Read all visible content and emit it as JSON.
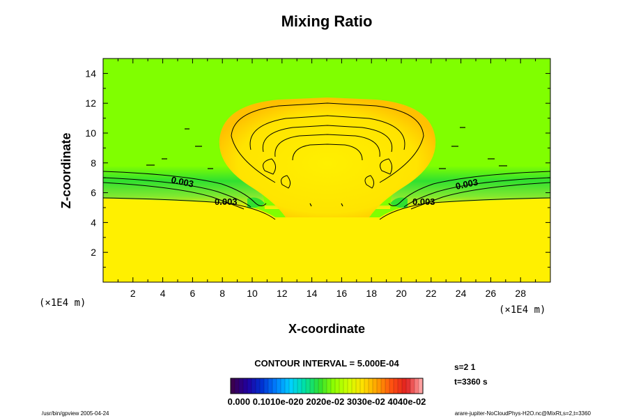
{
  "chart_data": {
    "type": "heatmap",
    "title": "Mixing Ratio",
    "xlabel": "X-coordinate",
    "ylabel": "Z-coordinate",
    "x_unit": "(×1E4 m)",
    "y_unit": "(×1E4 m)",
    "xlim": [
      0,
      30
    ],
    "ylim": [
      0,
      15
    ],
    "x_ticks": [
      "2",
      "4",
      "6",
      "8",
      "10",
      "12",
      "14",
      "16",
      "18",
      "20",
      "22",
      "24",
      "26",
      "28"
    ],
    "y_ticks": [
      "2",
      "4",
      "6",
      "8",
      "10",
      "12",
      "14"
    ],
    "contour_labels": [
      "0.003",
      "0.003",
      "0.003",
      "0.003"
    ],
    "contour_interval": "CONTOUR INTERVAL = 5.000E-04",
    "colorbar_labels": "0.000 0.1010e-020 2020e-02 3030e-02 4040e-02",
    "colorbar_colors": [
      "#3b0050",
      "#2200a0",
      "#0030d0",
      "#0080ff",
      "#00d0ff",
      "#00e0a0",
      "#30e030",
      "#90ff00",
      "#d0ff00",
      "#ffe000",
      "#ffa000",
      "#ff5010",
      "#e02020",
      "#ffa0a0"
    ],
    "regions": [
      {
        "name": "upper-background",
        "color": "#80ff00"
      },
      {
        "name": "lower-layer",
        "color": "#fff000"
      },
      {
        "name": "transition-band",
        "color": "#30e030"
      },
      {
        "name": "plume",
        "color": "#fff000"
      },
      {
        "name": "plume-rim",
        "color": "#ffc800"
      }
    ]
  },
  "info": {
    "slice": "s=2 1",
    "time": "t=3360 s"
  },
  "footer": {
    "left": "/usr/bin/gpview 2005-04-24",
    "right": "arare-jupiter-NoCloudPhys-H2O.nc@MixRt,s=2,t=3360"
  }
}
